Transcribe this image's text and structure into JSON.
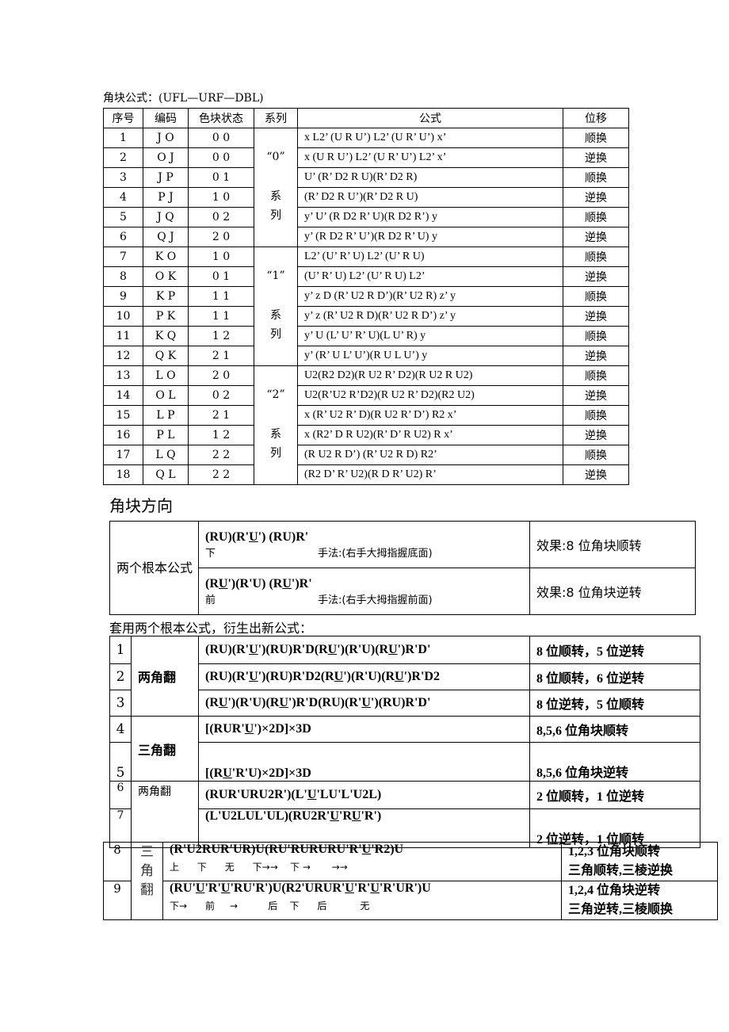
{
  "title": "角块公式：(UFL—URF—DBL)",
  "table1": {
    "headers": [
      "序号",
      "编码",
      "色块状态",
      "系列",
      "公式",
      "位移"
    ],
    "series": [
      {
        "name": "“0”",
        "suffix": "系列"
      },
      {
        "name": "“1”",
        "suffix": "系列"
      },
      {
        "name": "“2”",
        "suffix": "系列"
      }
    ],
    "rows": [
      [
        "1",
        "J O",
        "0 0",
        "x L2’ (U R U’) L2’ (U R’ U’) x’",
        "顺换"
      ],
      [
        "2",
        "O J",
        "0 0",
        "x (U R U’) L2’ (U R’ U’) L2’ x’",
        "逆换"
      ],
      [
        "3",
        "J P",
        "0 1",
        "U’ (R’ D2 R U)(R’ D2 R)",
        "顺换"
      ],
      [
        "4",
        "P J",
        "1 0",
        "(R’ D2 R U’)(R’ D2 R U)",
        "逆换"
      ],
      [
        "5",
        "J Q",
        "0 2",
        "y’ U’ (R D2 R’ U)(R D2 R’) y",
        "顺换"
      ],
      [
        "6",
        "Q J",
        "2 0",
        "y’ (R D2 R’ U’)(R D2 R’ U) y",
        "逆换"
      ],
      [
        "7",
        "K O",
        "1 0",
        "L2’ (U’ R’ U) L2’ (U’ R U)",
        "顺换"
      ],
      [
        "8",
        "O K",
        "0 1",
        "(U’ R’ U) L2’ (U’ R U) L2’",
        "逆换"
      ],
      [
        "9",
        "K P",
        "1 1",
        "y’ z D (R’ U2 R D’)(R’ U2 R) z’ y",
        "顺换"
      ],
      [
        "10",
        "P K",
        "1 1",
        "y’ z (R’ U2 R D)(R’ U2 R D’) z’ y",
        "逆换"
      ],
      [
        "11",
        "K Q",
        "1 2",
        "y’ U (L’ U’ R’ U)(L U’ R) y",
        "顺换"
      ],
      [
        "12",
        "Q K",
        "2 1",
        "y’ (R’ U L’ U’)(R U L U’) y",
        "逆换"
      ],
      [
        "13",
        "L O",
        "2 0",
        "U2(R2 D2)(R U2 R’ D2)(R U2 R U2)",
        "顺换"
      ],
      [
        "14",
        "O L",
        "0 2",
        "U2(R’U2 R’D2)(R U2 R’ D2)(R2 U2)",
        "逆换"
      ],
      [
        "15",
        "L P",
        "2 1",
        "x (R’ U2 R’ D)(R U2 R’ D’) R2 x’",
        "顺换"
      ],
      [
        "16",
        "P L",
        "1 2",
        "x (R2’ D R U2)(R’ D’ R U2) R x’",
        "逆换"
      ],
      [
        "17",
        "L Q",
        "2 2",
        "(R U2 R D’) (R’ U2 R D) R2’",
        "顺换"
      ],
      [
        "18",
        "Q L",
        "2 2",
        "(R2 D’ R’ U2)(R D R’ U2) R’",
        "逆换"
      ]
    ]
  },
  "heading2": "角块方向",
  "table2": {
    "label": "两个根本公式",
    "rows": [
      {
        "formula": [
          "(RU)(R'",
          "U",
          "')    (RU)R'"
        ],
        "note_left": "下",
        "note_right": "手法:(右手大拇指握底面)",
        "effect": "效果:8 位角块顺转"
      },
      {
        "formula": [
          "(R",
          "U",
          "')(R'U)    (R",
          "U",
          "')R'"
        ],
        "note_left": "前",
        "note_right": "手法:(右手大拇指握前面)",
        "effect": "效果:8 位角块逆转"
      }
    ]
  },
  "intro3": "套用两个根本公式，衍生出新公式：",
  "table3": {
    "groups": [
      "两角翻",
      "三角翻",
      "两角翻"
    ],
    "rows": [
      {
        "n": "1",
        "formula": [
          "(RU)(R'",
          "U",
          "')(RU)R'D(R",
          "U",
          "')(R'U)(R",
          "U",
          "')R'D'"
        ],
        "effect": "8 位顺转，5 位逆转"
      },
      {
        "n": "2",
        "formula": [
          "(RU)(R'",
          "U",
          "')(RU)R'D2(R",
          "U",
          "')(R'U)(R",
          "U",
          "')R'D2"
        ],
        "effect": "8 位顺转，6 位逆转"
      },
      {
        "n": "3",
        "formula": [
          "(R",
          "U",
          "')(R'U)(R",
          "U",
          "')R'D(RU)(R'",
          "U",
          "')(RU)R'D'"
        ],
        "effect": "8 位逆转，5 位顺转"
      },
      {
        "n": "4",
        "formula": [
          "[(RUR'",
          "U",
          "')×2D]×3D"
        ],
        "effect": "8,5,6 位角块顺转"
      },
      {
        "n": "5",
        "formula": [
          "[(R",
          "U",
          "'R'U)×2D]×3D"
        ],
        "effect": "8,5,6 位角块逆转"
      },
      {
        "n": "6",
        "formula": [
          "(RUR'URU2R')(L'",
          "U",
          "'LU'L'U2L)"
        ],
        "effect": "2 位顺转，1 位逆转"
      },
      {
        "n": "7",
        "formula": [
          "(L'U2LUL'UL)(RU2R'",
          "U",
          "'R",
          "U",
          "'R')"
        ],
        "effect": "2 位逆转，1 位顺转"
      }
    ]
  },
  "table4": {
    "group": [
      "三",
      "角",
      "翻"
    ],
    "rows": [
      {
        "n": "8",
        "formula": [
          "(R'U2RUR'UR)U(RU'RURURU'R'",
          "U",
          "'R2)U"
        ],
        "moves": "上      下      无      下→→    下 →       →→",
        "effect1": "1,2,3 位角块顺转",
        "effect2": "三角顺转,三棱逆换"
      },
      {
        "n": "9",
        "formula": [
          "(RU'",
          "U",
          "'R'",
          "U",
          "'RU'R')U(R2'URUR'",
          "U",
          "'R'",
          "U",
          "'R'UR')U"
        ],
        "moves": "下→      前     →          后    下      后           无",
        "effect1": "1,2,4 位角块逆转",
        "effect2": "三角逆转,三棱顺换"
      }
    ]
  }
}
